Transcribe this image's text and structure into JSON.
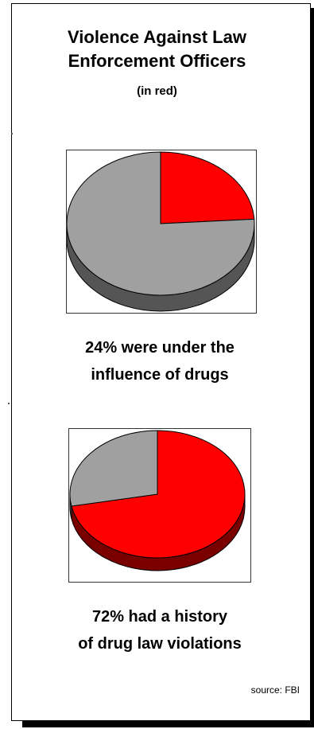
{
  "title_line1": "Violence Against Law",
  "title_line2": "Enforcement Officers",
  "subtitle": "(in red)",
  "source": "source: FBI",
  "colors": {
    "red": "#ff0000",
    "red_side": "#7a0000",
    "gray": "#a0a0a0",
    "gray_side": "#555555",
    "outline": "#000000"
  },
  "chart_data": [
    {
      "type": "pie",
      "caption_line1": "24% were under the",
      "caption_line2": "influence of drugs",
      "slices": [
        {
          "label": "under the influence of drugs",
          "value": 24,
          "color": "#ff0000"
        },
        {
          "label": "other",
          "value": 76,
          "color": "#a0a0a0"
        }
      ]
    },
    {
      "type": "pie",
      "caption_line1": "72% had a history",
      "caption_line2": "of drug law violations",
      "slices": [
        {
          "label": "history of drug law violations",
          "value": 72,
          "color": "#ff0000"
        },
        {
          "label": "other",
          "value": 28,
          "color": "#a0a0a0"
        }
      ]
    }
  ]
}
